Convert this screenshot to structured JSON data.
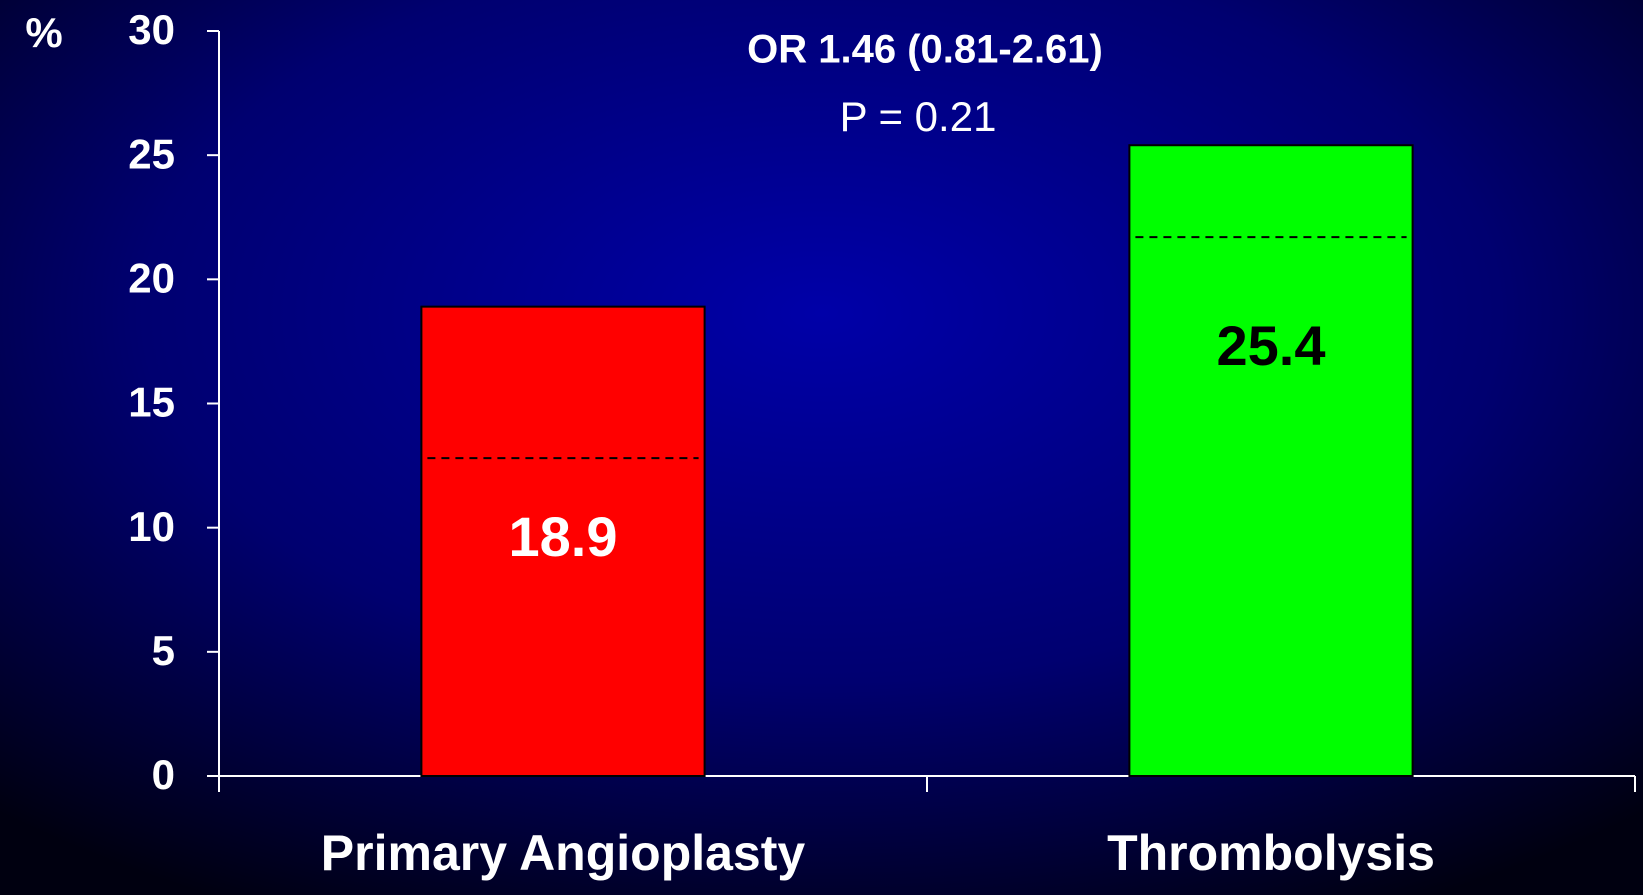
{
  "chart_data": {
    "type": "bar",
    "annotations": [
      "OR 1.46 (0.81-2.61)",
      "P = 0.21"
    ],
    "y_label": "%",
    "categories": [
      "Primary Angioplasty",
      "Thrombolysis"
    ],
    "values": [
      18.9,
      25.4
    ],
    "colors": [
      "#ff0000",
      "#00ff00"
    ],
    "label_colors": [
      "#ffffff",
      "#000000"
    ],
    "dashed_values": [
      12.8,
      21.7
    ],
    "ylim": [
      0,
      30
    ],
    "yticks": [
      0,
      5,
      10,
      15,
      20,
      25,
      30
    ],
    "grid": false
  }
}
